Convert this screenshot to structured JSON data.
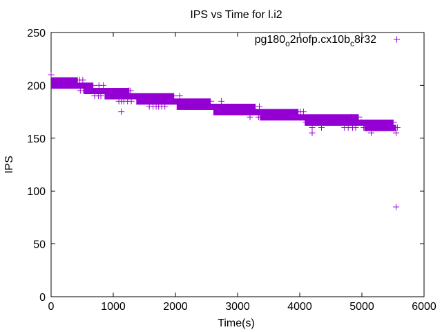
{
  "chart_data": {
    "type": "scatter",
    "title": "IPS vs Time for l.i2",
    "xlabel": "Time(s)",
    "ylabel": "IPS",
    "xlim": [
      0,
      6000
    ],
    "ylim": [
      0,
      250
    ],
    "xticks": [
      "0",
      "1000",
      "2000",
      "3000",
      "4000",
      "5000",
      "6000"
    ],
    "yticks": [
      "0",
      "50",
      "100",
      "150",
      "200",
      "250"
    ],
    "grid": false,
    "legend": {
      "position": "top-right",
      "label_main": "pg180",
      "sub1": "o",
      "mid": "2nofp.cx10b",
      "sub2": "c",
      "tail": "8r32",
      "full": "pg180_o2nofp.cx10b_c8r32"
    },
    "color": "#9400d3",
    "series": [
      {
        "name": "pg180_o2nofp.cx10b_c8r32",
        "dense_segments": [
          {
            "x0": 0,
            "x1": 430,
            "y": 205
          },
          {
            "x0": 0,
            "x1": 680,
            "y": 200
          },
          {
            "x0": 530,
            "x1": 1260,
            "y": 195
          },
          {
            "x0": 860,
            "x1": 1980,
            "y": 190
          },
          {
            "x0": 1370,
            "x1": 2570,
            "y": 185
          },
          {
            "x0": 2020,
            "x1": 3290,
            "y": 180
          },
          {
            "x0": 2610,
            "x1": 3980,
            "y": 175
          },
          {
            "x0": 3360,
            "x1": 4950,
            "y": 170
          },
          {
            "x0": 4080,
            "x1": 5510,
            "y": 165
          },
          {
            "x0": 5040,
            "x1": 5550,
            "y": 160
          }
        ],
        "points": [
          [
            0,
            210
          ],
          [
            460,
            205
          ],
          [
            510,
            205
          ],
          [
            470,
            195
          ],
          [
            520,
            195
          ],
          [
            770,
            200
          ],
          [
            840,
            200
          ],
          [
            700,
            190
          ],
          [
            760,
            190
          ],
          [
            800,
            190
          ],
          [
            1250,
            195
          ],
          [
            1280,
            195
          ],
          [
            1090,
            185
          ],
          [
            1130,
            185
          ],
          [
            1170,
            185
          ],
          [
            1130,
            175
          ],
          [
            1230,
            185
          ],
          [
            1290,
            185
          ],
          [
            1580,
            180
          ],
          [
            1640,
            180
          ],
          [
            1690,
            180
          ],
          [
            1730,
            180
          ],
          [
            1780,
            180
          ],
          [
            1830,
            180
          ],
          [
            2070,
            190
          ],
          [
            2740,
            185
          ],
          [
            3200,
            170
          ],
          [
            3350,
            180
          ],
          [
            3340,
            170
          ],
          [
            4010,
            175
          ],
          [
            4060,
            175
          ],
          [
            4100,
            165
          ],
          [
            4150,
            165
          ],
          [
            4200,
            160
          ],
          [
            4200,
            155
          ],
          [
            4350,
            160
          ],
          [
            4720,
            160
          ],
          [
            4780,
            160
          ],
          [
            4850,
            160
          ],
          [
            4900,
            160
          ],
          [
            4990,
            165
          ],
          [
            5030,
            160
          ],
          [
            4840,
            170
          ],
          [
            5150,
            155
          ],
          [
            5550,
            155
          ],
          [
            5570,
            160
          ],
          [
            5550,
            85
          ]
        ]
      }
    ]
  }
}
